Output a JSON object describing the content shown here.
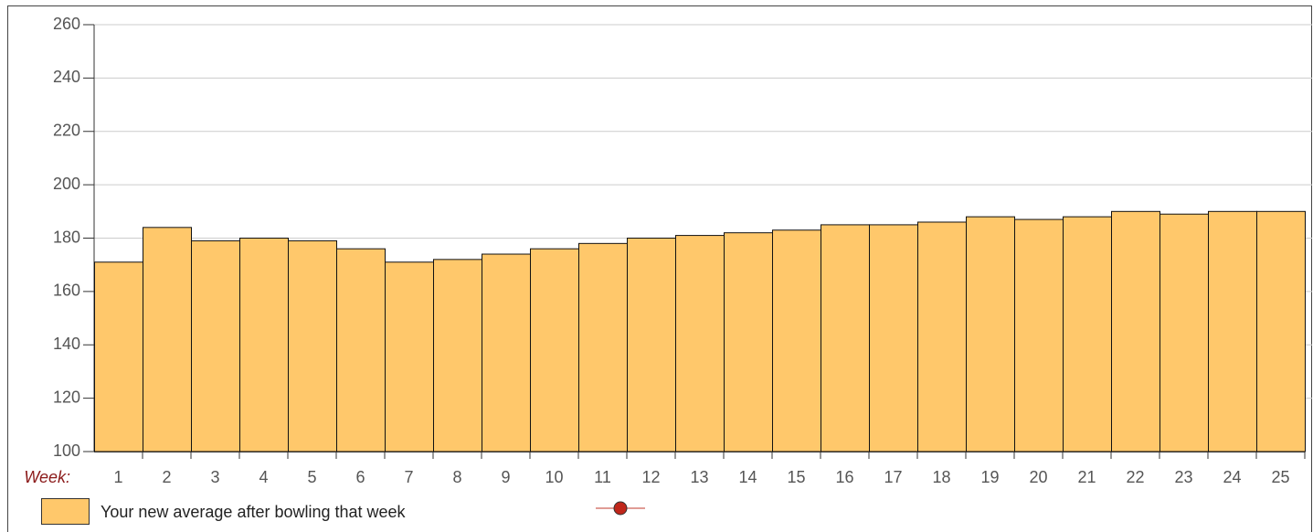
{
  "chart_data": {
    "type": "bar",
    "x_label": "Week:",
    "categories": [
      1,
      2,
      3,
      4,
      5,
      6,
      7,
      8,
      9,
      10,
      11,
      12,
      13,
      14,
      15,
      16,
      17,
      18,
      19,
      20,
      21,
      22,
      23,
      24,
      25
    ],
    "series": [
      {
        "name": "Your new average after bowling that week",
        "color": "#ffc86b",
        "values": [
          171,
          184,
          179,
          180,
          179,
          176,
          171,
          172,
          174,
          176,
          178,
          180,
          181,
          182,
          183,
          185,
          185,
          186,
          188,
          187,
          188,
          190,
          189,
          190,
          190
        ]
      }
    ],
    "ylim": [
      100,
      260
    ],
    "yticks": [
      100,
      120,
      140,
      160,
      180,
      200,
      220,
      240,
      260
    ],
    "grid": true
  }
}
